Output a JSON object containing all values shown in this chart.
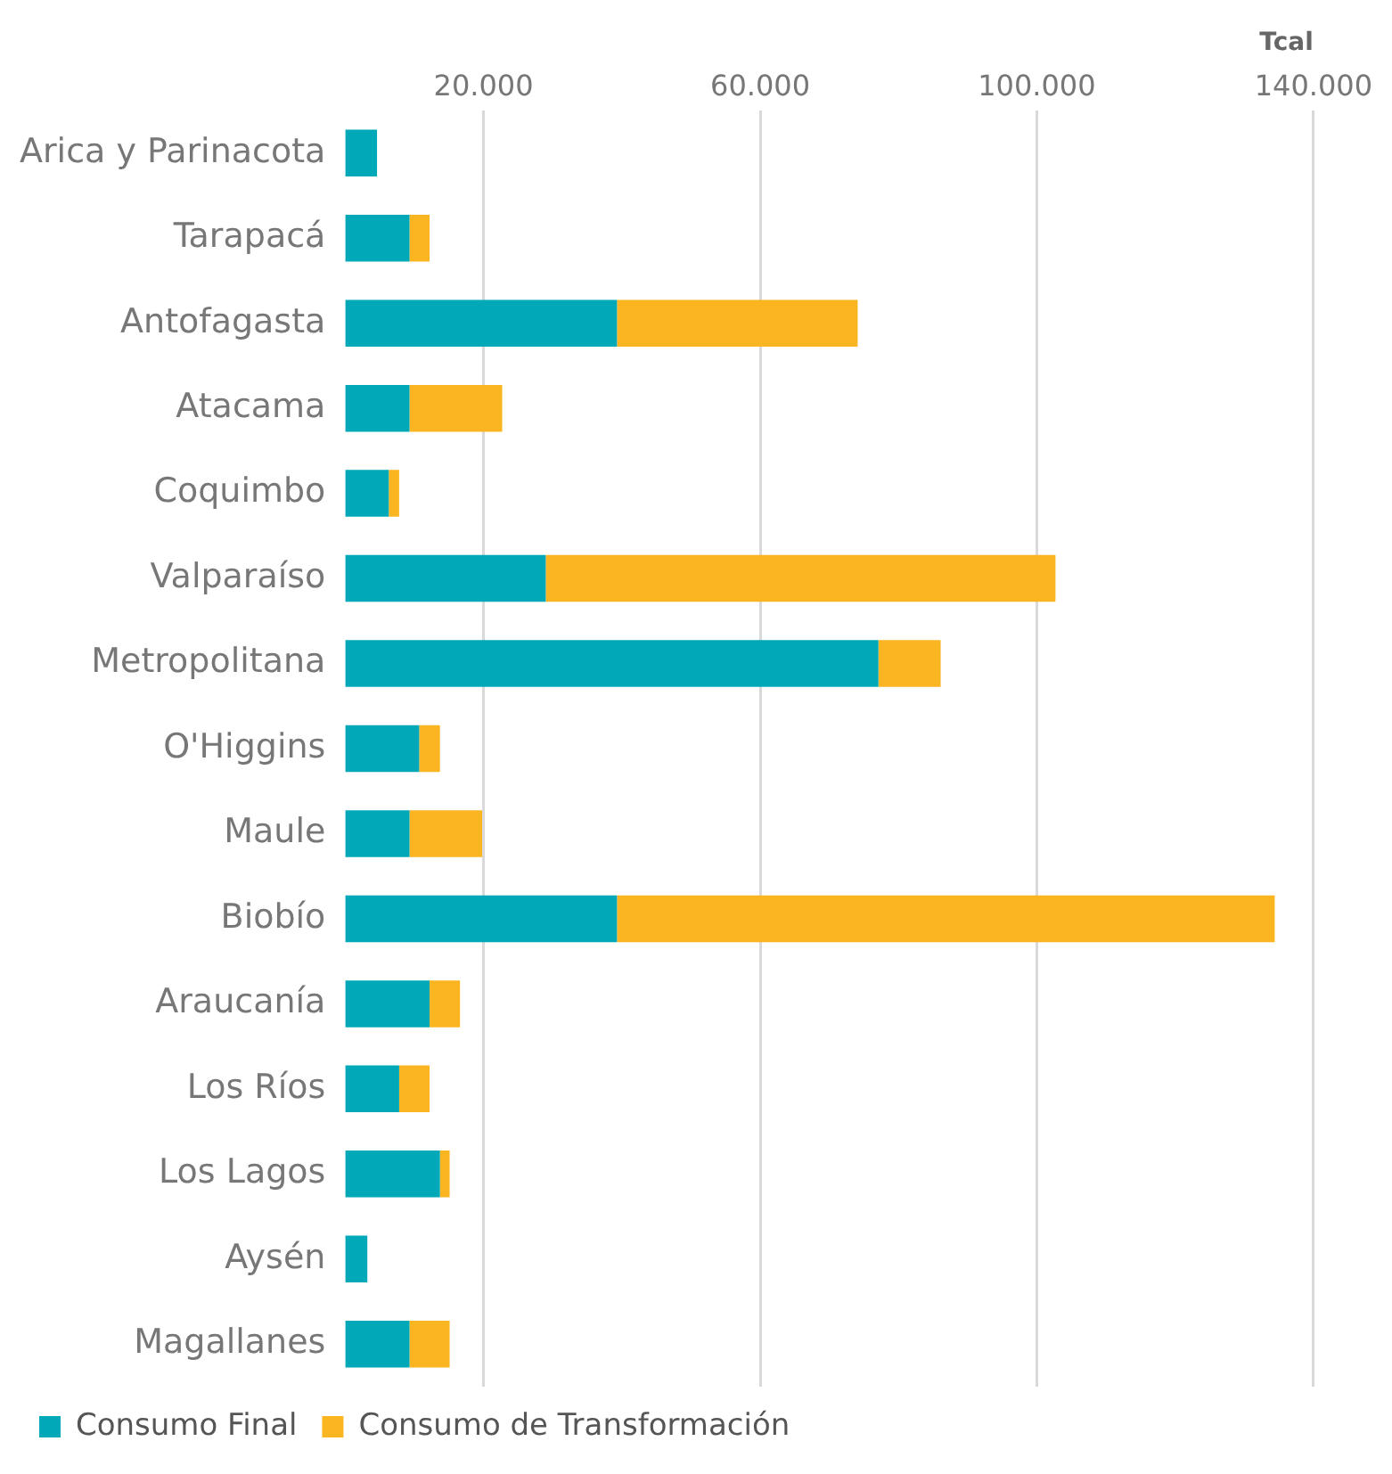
{
  "chart_data": {
    "type": "bar",
    "orientation": "horizontal",
    "stacked": true,
    "xlabel": "Tcal",
    "categories": [
      "Arica y Parinacota",
      "Tarapacá",
      "Antofagasta",
      "Atacama",
      "Coquimbo",
      "Valparaíso",
      "Metropolitana",
      "O'Higgins",
      "Maule",
      "Biobío",
      "Araucanía",
      "Los Ríos",
      "Los Lagos",
      "Aysén",
      "Magallanes"
    ],
    "series": [
      {
        "name": "Consumo Final",
        "color": "#00a8b8",
        "values": [
          4600,
          9300,
          39300,
          9300,
          6300,
          29000,
          77100,
          10700,
          9300,
          39300,
          12200,
          7800,
          13700,
          3200,
          9300
        ]
      },
      {
        "name": "Consumo de Transformación",
        "color": "#fbb521",
        "values": [
          null,
          2900,
          34800,
          13400,
          1500,
          73700,
          9000,
          3000,
          10500,
          95100,
          4400,
          4400,
          1400,
          null,
          5800
        ]
      }
    ],
    "xlim": [
      0,
      140000
    ],
    "xticks": [
      {
        "value": 20000,
        "label": "20.000"
      },
      {
        "value": 60000,
        "label": "60.000"
      },
      {
        "value": 100000,
        "label": "100.000"
      },
      {
        "value": 140000,
        "label": "140.000"
      }
    ],
    "grid": "x",
    "legend": "bottom"
  }
}
